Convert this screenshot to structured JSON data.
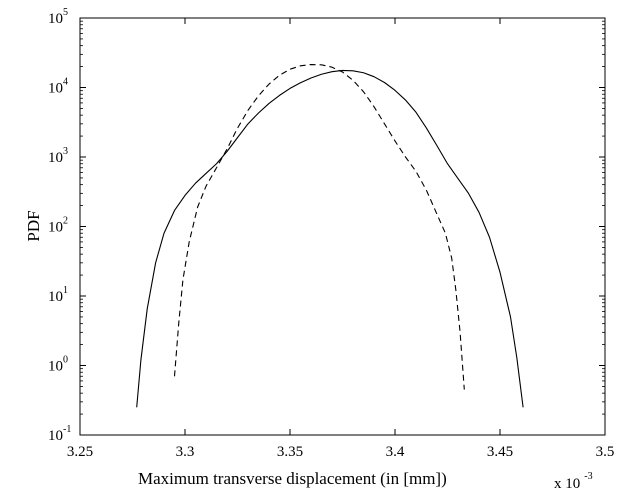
{
  "chart_data": {
    "type": "line",
    "title": "",
    "xlabel": "Maximum transverse displacement (in [mm])",
    "ylabel": "PDF",
    "x_multiplier": {
      "base": "x 10",
      "exponent": "-3"
    },
    "xlim": [
      3.25,
      3.5
    ],
    "ylim": [
      0.1,
      100000
    ],
    "y_scale": "log",
    "grid": false,
    "legend": "none",
    "x_ticks": [
      {
        "value": 3.25,
        "label": "3.25"
      },
      {
        "value": 3.3,
        "label": "3.3"
      },
      {
        "value": 3.35,
        "label": "3.35"
      },
      {
        "value": 3.4,
        "label": "3.4"
      },
      {
        "value": 3.45,
        "label": "3.45"
      },
      {
        "value": 3.5,
        "label": "3.5"
      }
    ],
    "y_ticks": [
      {
        "value": 0.1,
        "base": "10",
        "exp": "-1"
      },
      {
        "value": 1,
        "base": "10",
        "exp": "0"
      },
      {
        "value": 10,
        "base": "10",
        "exp": "1"
      },
      {
        "value": 100,
        "base": "10",
        "exp": "2"
      },
      {
        "value": 1000,
        "base": "10",
        "exp": "3"
      },
      {
        "value": 10000,
        "base": "10",
        "exp": "4"
      },
      {
        "value": 100000,
        "base": "10",
        "exp": "5"
      }
    ],
    "series": [
      {
        "style": "solid",
        "color": "#000000",
        "points": [
          [
            3.277,
            0.25
          ],
          [
            3.279,
            1.2
          ],
          [
            3.282,
            6.5
          ],
          [
            3.286,
            30
          ],
          [
            3.29,
            80
          ],
          [
            3.295,
            170
          ],
          [
            3.3,
            280
          ],
          [
            3.305,
            420
          ],
          [
            3.31,
            580
          ],
          [
            3.315,
            800
          ],
          [
            3.32,
            1200
          ],
          [
            3.325,
            1900
          ],
          [
            3.33,
            3000
          ],
          [
            3.335,
            4300
          ],
          [
            3.34,
            5900
          ],
          [
            3.345,
            7700
          ],
          [
            3.35,
            9700
          ],
          [
            3.355,
            11700
          ],
          [
            3.36,
            13700
          ],
          [
            3.365,
            15500
          ],
          [
            3.37,
            16900
          ],
          [
            3.375,
            17600
          ],
          [
            3.38,
            17400
          ],
          [
            3.385,
            16300
          ],
          [
            3.39,
            14300
          ],
          [
            3.395,
            11800
          ],
          [
            3.4,
            9100
          ],
          [
            3.405,
            6600
          ],
          [
            3.41,
            4400
          ],
          [
            3.415,
            2600
          ],
          [
            3.42,
            1450
          ],
          [
            3.425,
            800
          ],
          [
            3.43,
            490
          ],
          [
            3.435,
            300
          ],
          [
            3.44,
            160
          ],
          [
            3.445,
            70
          ],
          [
            3.45,
            22
          ],
          [
            3.455,
            5
          ],
          [
            3.458,
            1.3
          ],
          [
            3.461,
            0.25
          ]
        ]
      },
      {
        "style": "dashed",
        "color": "#000000",
        "points": [
          [
            3.295,
            0.7
          ],
          [
            3.297,
            4
          ],
          [
            3.299,
            17
          ],
          [
            3.302,
            60
          ],
          [
            3.306,
            190
          ],
          [
            3.31,
            380
          ],
          [
            3.315,
            700
          ],
          [
            3.32,
            1300
          ],
          [
            3.325,
            2600
          ],
          [
            3.33,
            4700
          ],
          [
            3.335,
            7600
          ],
          [
            3.34,
            11200
          ],
          [
            3.345,
            15000
          ],
          [
            3.35,
            18300
          ],
          [
            3.355,
            20500
          ],
          [
            3.36,
            21400
          ],
          [
            3.365,
            21200
          ],
          [
            3.37,
            19600
          ],
          [
            3.375,
            16700
          ],
          [
            3.38,
            12700
          ],
          [
            3.385,
            8700
          ],
          [
            3.39,
            5300
          ],
          [
            3.395,
            3000
          ],
          [
            3.4,
            1700
          ],
          [
            3.405,
            1000
          ],
          [
            3.41,
            620
          ],
          [
            3.415,
            330
          ],
          [
            3.42,
            150
          ],
          [
            3.424,
            80
          ],
          [
            3.427,
            35
          ],
          [
            3.429,
            12
          ],
          [
            3.431,
            3
          ],
          [
            3.433,
            0.45
          ]
        ]
      }
    ]
  }
}
